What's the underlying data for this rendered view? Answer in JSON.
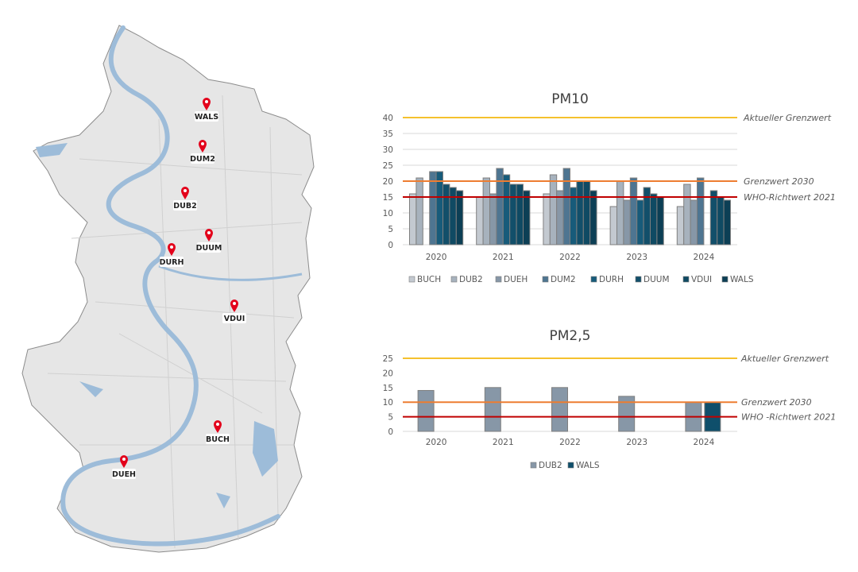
{
  "map": {
    "stations": [
      {
        "id": "WALS",
        "label": "WALS"
      },
      {
        "id": "DUM2",
        "label": "DUM2"
      },
      {
        "id": "DUB2",
        "label": "DUB2"
      },
      {
        "id": "DUUM",
        "label": "DUUM"
      },
      {
        "id": "DURH",
        "label": "DURH"
      },
      {
        "id": "VDUI",
        "label": "VDUI"
      },
      {
        "id": "BUCH",
        "label": "BUCH"
      },
      {
        "id": "DUEH",
        "label": "DUEH"
      }
    ],
    "colors": {
      "land": "#e6e6e6",
      "water": "#9dbcd9",
      "marker": "#e3001b"
    }
  },
  "chart_data": [
    {
      "type": "bar",
      "title": "PM10",
      "categories": [
        "2020",
        "2021",
        "2022",
        "2023",
        "2024"
      ],
      "ylim": [
        0,
        40
      ],
      "yticks": [
        0,
        5,
        10,
        15,
        20,
        25,
        30,
        35,
        40
      ],
      "grid": true,
      "legend": "bottom",
      "series": [
        {
          "name": "BUCH",
          "color": "#c3c9d0",
          "values": [
            16,
            15,
            16,
            12,
            12
          ]
        },
        {
          "name": "DUB2",
          "color": "#a7b2bd",
          "values": [
            21,
            21,
            22,
            20,
            19
          ]
        },
        {
          "name": "DUEH",
          "color": "#8797a7",
          "values": [
            null,
            16,
            17,
            14,
            14
          ]
        },
        {
          "name": "DUM2",
          "color": "#4e7591",
          "values": [
            23,
            24,
            24,
            21,
            21
          ]
        },
        {
          "name": "DURH",
          "color": "#175b7a",
          "values": [
            23,
            22,
            18,
            14,
            null
          ]
        },
        {
          "name": "DUUM",
          "color": "#124f6a",
          "values": [
            19,
            19,
            20,
            18,
            17
          ]
        },
        {
          "name": "VDUI",
          "color": "#0f4a63",
          "values": [
            18,
            19,
            20,
            16,
            15
          ]
        },
        {
          "name": "WALS",
          "color": "#0c3f55",
          "values": [
            17,
            17,
            17,
            15,
            14
          ]
        }
      ],
      "reference_lines": [
        {
          "label": "Aktueller Grenzwert",
          "value": 40,
          "color": "#f5c12e"
        },
        {
          "label": "Grenzwert 2030",
          "value": 20,
          "color": "#ed7d31"
        },
        {
          "label": "WHO-Richtwert 2021",
          "value": 15,
          "color": "#c00000"
        }
      ]
    },
    {
      "type": "bar",
      "title": "PM2,5",
      "categories": [
        "2020",
        "2021",
        "2022",
        "2023",
        "2024"
      ],
      "ylim": [
        0,
        25
      ],
      "yticks": [
        0,
        5,
        10,
        15,
        20,
        25
      ],
      "grid": false,
      "legend": "bottom",
      "series": [
        {
          "name": "DUB2",
          "color": "#8797a7",
          "values": [
            14,
            15,
            15,
            12,
            10
          ]
        },
        {
          "name": "WALS",
          "color": "#0f4f6b",
          "values": [
            null,
            null,
            null,
            null,
            10
          ]
        }
      ],
      "reference_lines": [
        {
          "label": "Aktueller Grenzwert",
          "value": 25,
          "color": "#f5c12e"
        },
        {
          "label": "Grenzwert 2030",
          "value": 10,
          "color": "#ed7d31"
        },
        {
          "label": "WHO -Richtwert 2021",
          "value": 5,
          "color": "#c00000"
        }
      ]
    }
  ]
}
